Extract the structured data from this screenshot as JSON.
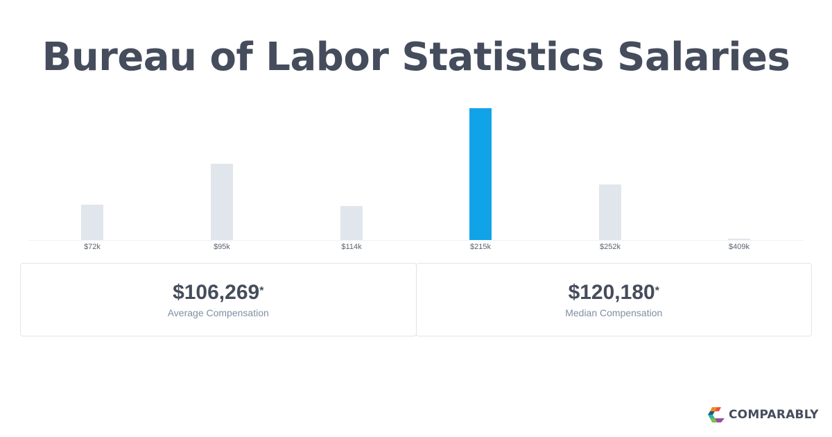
{
  "header": {
    "title": "Bureau of Labor Statistics Salaries"
  },
  "chart_data": {
    "type": "bar",
    "title": "Bureau of Labor Statistics Salaries",
    "categories": [
      "$72k",
      "$95k",
      "$114k",
      "$215k",
      "$252k",
      "$409k"
    ],
    "values": [
      27,
      58,
      26,
      100,
      42,
      1
    ],
    "value_unit": "relative bar height (% of tallest)",
    "highlighted_index": 3,
    "xlabel": "",
    "ylabel": "",
    "grid": false,
    "legend": "none"
  },
  "colors": {
    "bar": "#e0e6ec",
    "highlight": "#11a3e8",
    "text": "#454c5c",
    "label": "#7e8fa3"
  },
  "stats": [
    {
      "value": "$106,269",
      "mark": "*",
      "label": "Average Compensation"
    },
    {
      "value": "$120,180",
      "mark": "*",
      "label": "Median Compensation"
    }
  ],
  "brand": {
    "name": "COMPARABLY",
    "icon": "comparably-logo-icon"
  }
}
